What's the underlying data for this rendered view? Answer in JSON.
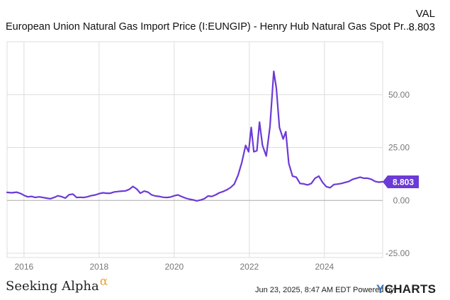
{
  "header": {
    "title": "European Union Natural Gas Import Price (I:EUNGIP) - Henry Hub Natural Gas Spot Pr...",
    "val_label": "VAL",
    "val_value": "8.803"
  },
  "footer": {
    "brand": "Seeking Alpha",
    "brand_symbol": "α",
    "date_text": "Jun 23, 2025, 8:47 AM EDT Powered by",
    "logo_y": "Y",
    "logo_rest": "CHARTS"
  },
  "colors": {
    "line": "#6c3ad6",
    "axis_text": "#777777",
    "grid": "#dddddd",
    "zero_line": "#aaaaaa"
  },
  "chart_data": {
    "type": "line",
    "title": "",
    "xlabel": "",
    "ylabel": "",
    "xlim": [
      2015.55,
      2025.55
    ],
    "ylim": [
      -27,
      75
    ],
    "x_ticks": [
      2016,
      2018,
      2020,
      2022,
      2024
    ],
    "x_tick_labels": [
      "2016",
      "2018",
      "2020",
      "2022",
      "2024"
    ],
    "y_ticks": [
      50,
      25,
      0,
      -25
    ],
    "y_tick_labels": [
      "50.00",
      "25.00",
      "0.00",
      "-25.00"
    ],
    "grid": true,
    "last_value_label": "8.803",
    "series": [
      {
        "name": "",
        "x": [
          2015.55,
          2015.67,
          2015.8,
          2015.92,
          2016.0,
          2016.1,
          2016.2,
          2016.3,
          2016.4,
          2016.5,
          2016.6,
          2016.7,
          2016.8,
          2016.9,
          2017.0,
          2017.1,
          2017.2,
          2017.3,
          2017.4,
          2017.5,
          2017.6,
          2017.7,
          2017.8,
          2017.9,
          2018.0,
          2018.1,
          2018.2,
          2018.3,
          2018.4,
          2018.5,
          2018.6,
          2018.7,
          2018.8,
          2018.9,
          2019.0,
          2019.1,
          2019.2,
          2019.3,
          2019.4,
          2019.5,
          2019.6,
          2019.7,
          2019.8,
          2019.9,
          2020.0,
          2020.1,
          2020.2,
          2020.3,
          2020.4,
          2020.5,
          2020.6,
          2020.7,
          2020.8,
          2020.9,
          2021.0,
          2021.1,
          2021.2,
          2021.3,
          2021.4,
          2021.5,
          2021.6,
          2021.7,
          2021.8,
          2021.9,
          2021.98,
          2022.05,
          2022.12,
          2022.2,
          2022.27,
          2022.35,
          2022.45,
          2022.55,
          2022.65,
          2022.72,
          2022.8,
          2022.9,
          2022.97,
          2023.05,
          2023.15,
          2023.25,
          2023.35,
          2023.45,
          2023.55,
          2023.65,
          2023.75,
          2023.85,
          2023.95,
          2024.05,
          2024.15,
          2024.25,
          2024.35,
          2024.45,
          2024.55,
          2024.65,
          2024.75,
          2024.85,
          2024.95,
          2025.05,
          2025.15,
          2025.25,
          2025.35,
          2025.45,
          2025.55
        ],
        "y": [
          3.8,
          3.6,
          3.9,
          3.2,
          2.4,
          1.7,
          1.9,
          1.4,
          1.7,
          1.4,
          1.1,
          0.8,
          1.4,
          2.2,
          1.8,
          1.1,
          2.7,
          3.0,
          1.4,
          1.5,
          1.4,
          1.8,
          2.3,
          2.6,
          3.2,
          3.6,
          3.4,
          3.4,
          4.0,
          4.2,
          4.4,
          4.5,
          5.2,
          6.6,
          5.4,
          3.4,
          4.4,
          3.9,
          2.6,
          2.1,
          1.9,
          1.5,
          1.4,
          1.6,
          2.2,
          2.6,
          1.8,
          1.1,
          0.6,
          0.3,
          -0.2,
          0.2,
          0.8,
          2.1,
          1.9,
          2.6,
          3.6,
          4.2,
          5.0,
          6.1,
          7.7,
          12.0,
          18.0,
          26.0,
          23.0,
          34.5,
          23.0,
          23.5,
          37.0,
          26.0,
          21.0,
          35.0,
          61.0,
          53.0,
          34.5,
          29.0,
          32.5,
          17.5,
          11.5,
          11.0,
          8.0,
          7.8,
          7.3,
          8.0,
          10.5,
          11.5,
          8.5,
          6.5,
          6.0,
          7.5,
          7.7,
          8.0,
          8.5,
          9.0,
          10.0,
          10.5,
          11.0,
          10.5,
          10.5,
          10.0,
          9.0,
          8.6,
          8.803
        ]
      }
    ]
  }
}
